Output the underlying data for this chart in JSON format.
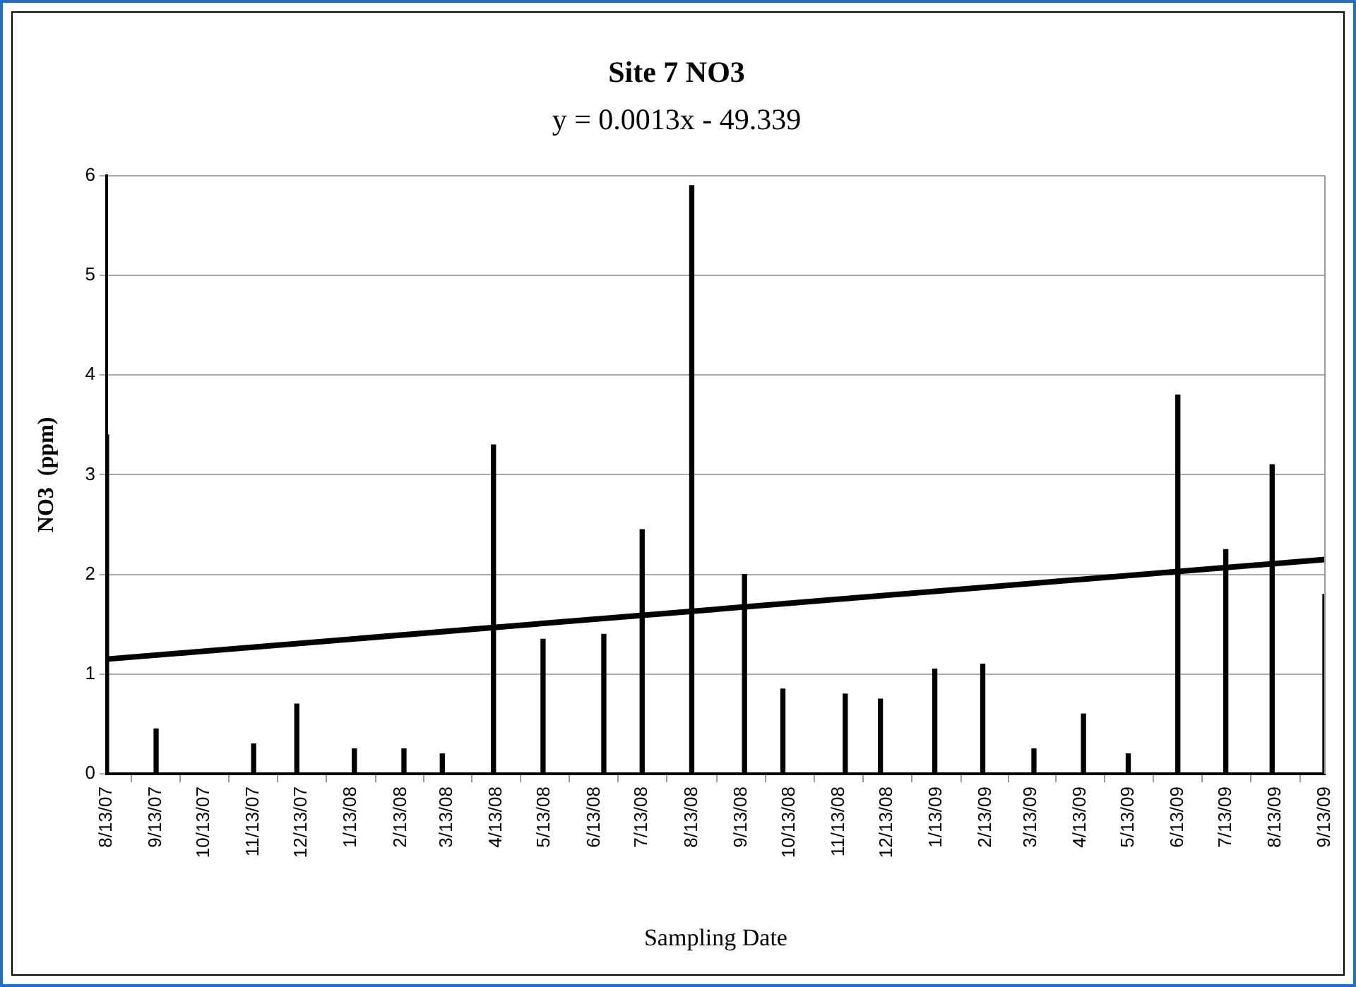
{
  "chart_data": {
    "type": "bar",
    "title": "Site 7 NO3",
    "subtitle": "y = 0.0013x - 49.339",
    "xlabel": "Sampling Date",
    "ylabel": "NO3  (ppm)",
    "x": [
      "2007-08-13",
      "2007-09-13",
      "2007-11-13",
      "2007-12-10",
      "2008-01-15",
      "2008-02-15",
      "2008-03-10",
      "2008-04-11",
      "2008-05-12",
      "2008-06-19",
      "2008-07-13",
      "2008-08-13",
      "2008-09-15",
      "2008-10-09",
      "2008-11-17",
      "2008-12-09",
      "2009-01-12",
      "2009-02-11",
      "2009-03-15",
      "2009-04-15",
      "2009-05-13",
      "2009-06-13",
      "2009-07-13",
      "2009-08-11",
      "2009-09-13"
    ],
    "series": [
      {
        "color": "#000000",
        "values": [
          3.4,
          0.45,
          0.3,
          0.7,
          0.25,
          0.25,
          0.2,
          3.3,
          1.35,
          1.4,
          2.45,
          5.9,
          2.0,
          0.85,
          0.8,
          0.75,
          1.05,
          1.1,
          0.25,
          0.6,
          0.2,
          3.8,
          2.25,
          3.1,
          1.8
        ]
      },
      {
        "type": "line",
        "color": "#000000",
        "x": [
          "2007-08-13",
          "2009-09-13"
        ],
        "values": [
          1.15,
          2.15
        ]
      }
    ],
    "xlim": [
      "2007-08-13",
      "2009-09-13"
    ],
    "xticks": [
      {
        "value": "2007-08-13",
        "label": "8/13/07"
      },
      {
        "value": "2007-09-13",
        "label": "9/13/07"
      },
      {
        "value": "2007-10-13",
        "label": "10/13/07"
      },
      {
        "value": "2007-11-13",
        "label": "11/13/07"
      },
      {
        "value": "2007-12-13",
        "label": "12/13/07"
      },
      {
        "value": "2008-01-13",
        "label": "1/13/08"
      },
      {
        "value": "2008-02-13",
        "label": "2/13/08"
      },
      {
        "value": "2008-03-13",
        "label": "3/13/08"
      },
      {
        "value": "2008-04-13",
        "label": "4/13/08"
      },
      {
        "value": "2008-05-13",
        "label": "5/13/08"
      },
      {
        "value": "2008-06-13",
        "label": "6/13/08"
      },
      {
        "value": "2008-07-13",
        "label": "7/13/08"
      },
      {
        "value": "2008-08-13",
        "label": "8/13/08"
      },
      {
        "value": "2008-09-13",
        "label": "9/13/08"
      },
      {
        "value": "2008-10-13",
        "label": "10/13/08"
      },
      {
        "value": "2008-11-13",
        "label": "11/13/08"
      },
      {
        "value": "2008-12-13",
        "label": "12/13/08"
      },
      {
        "value": "2009-01-13",
        "label": "1/13/09"
      },
      {
        "value": "2009-02-13",
        "label": "2/13/09"
      },
      {
        "value": "2009-03-13",
        "label": "3/13/09"
      },
      {
        "value": "2009-04-13",
        "label": "4/13/09"
      },
      {
        "value": "2009-05-13",
        "label": "5/13/09"
      },
      {
        "value": "2009-06-13",
        "label": "6/13/09"
      },
      {
        "value": "2009-07-13",
        "label": "7/13/09"
      },
      {
        "value": "2009-08-13",
        "label": "8/13/09"
      },
      {
        "value": "2009-09-13",
        "label": "9/13/09"
      }
    ],
    "ylim": [
      0,
      6
    ],
    "yticks": [
      0,
      1,
      2,
      3,
      4,
      5,
      6
    ],
    "grid": "y",
    "legend": false
  }
}
